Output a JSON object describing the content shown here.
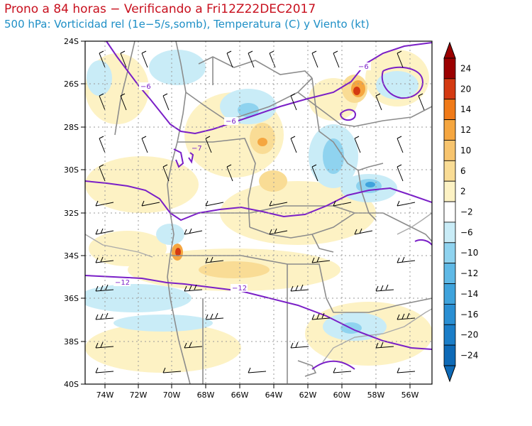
{
  "header": {
    "title": "Prono a 84 horas − Verificando a Fri12Z22DEC2017",
    "subtitle": "500 hPa: Vorticidad rel (1e−5/s,somb), Temperatura (C) y Viento (kt)"
  },
  "map": {
    "lat_labels": [
      "24S",
      "26S",
      "28S",
      "30S",
      "32S",
      "34S",
      "36S",
      "38S",
      "40S"
    ],
    "lon_labels": [
      "74W",
      "72W",
      "70W",
      "68W",
      "66W",
      "64W",
      "62W",
      "60W",
      "58W",
      "56W"
    ],
    "contour_labels": [
      {
        "name": "contour-label-n6-a",
        "text": "−6"
      },
      {
        "name": "contour-label-n6-b",
        "text": "−6"
      },
      {
        "name": "contour-label-n6-c",
        "text": "−6"
      },
      {
        "name": "contour-label-n7",
        "text": "−7"
      },
      {
        "name": "contour-label-n12-a",
        "text": "−12"
      },
      {
        "name": "contour-label-n12-b",
        "text": "−12"
      }
    ]
  },
  "colorbar": {
    "levels": [
      "24",
      "20",
      "14",
      "12",
      "10",
      "6",
      "2",
      "−2",
      "−6",
      "−10",
      "−12",
      "−14",
      "−16",
      "−20",
      "−24"
    ],
    "colors": [
      "#9b0000",
      "#d43a12",
      "#f07a18",
      "#f5a640",
      "#f7c46e",
      "#f9dc95",
      "#fdf2c4",
      "#ffffff",
      "#c9ecf7",
      "#8fd3ef",
      "#5fb9e6",
      "#3fa3dc",
      "#2a8fd3",
      "#1b7ec8",
      "#0e6ab7"
    ]
  }
}
